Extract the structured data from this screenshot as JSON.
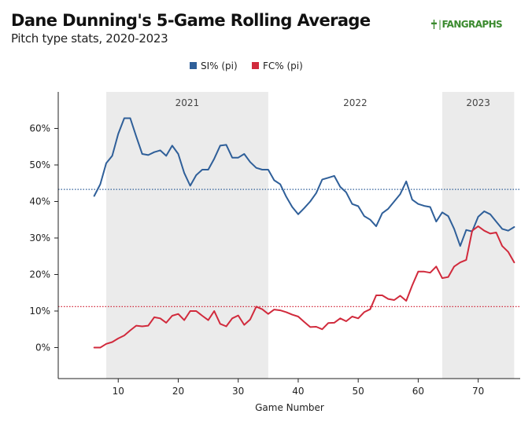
{
  "header": {
    "title": "Dane Dunning's 5-Game Rolling Average",
    "subtitle": "Pitch type stats, 2020-2023",
    "logo_text": "FANGRAPHS"
  },
  "colors": {
    "si": "#2f5f99",
    "fc": "#d12a3c",
    "band": "#ebebeb",
    "axis": "#222222"
  },
  "chart_data": {
    "type": "line",
    "title": "Dane Dunning's 5-Game Rolling Average",
    "subtitle": "Pitch type stats, 2020-2023",
    "xlabel": "Game Number",
    "ylabel": "",
    "xlim": [
      0,
      77
    ],
    "ylim": [
      -0.085,
      0.7
    ],
    "x_ticks": [
      10,
      20,
      30,
      40,
      50,
      60,
      70
    ],
    "y_ticks": [
      0,
      0.1,
      0.2,
      0.3,
      0.4,
      0.5,
      0.6
    ],
    "y_tick_labels": [
      "0%",
      "10%",
      "20%",
      "30%",
      "40%",
      "50%",
      "60%"
    ],
    "legend_position": "top-center",
    "bands": [
      {
        "label": "2021",
        "x0": 8,
        "x1": 35,
        "shaded": true
      },
      {
        "label": "2022",
        "x0": 35,
        "x1": 64,
        "shaded": false
      },
      {
        "label": "2023",
        "x0": 64,
        "x1": 76,
        "shaded": true
      }
    ],
    "series": [
      {
        "name": "SI% (pi)",
        "color": "#2f5f99",
        "mean": 0.433,
        "x": [
          6,
          7,
          8,
          9,
          10,
          11,
          12,
          13,
          14,
          15,
          16,
          17,
          18,
          19,
          20,
          21,
          22,
          23,
          24,
          25,
          26,
          27,
          28,
          29,
          30,
          31,
          32,
          33,
          34,
          35,
          36,
          37,
          38,
          39,
          40,
          41,
          42,
          43,
          44,
          45,
          46,
          47,
          48,
          49,
          50,
          51,
          52,
          53,
          54,
          55,
          56,
          57,
          58,
          59,
          60,
          61,
          62,
          63,
          64,
          65,
          66,
          67,
          68,
          69,
          70,
          71,
          72,
          73,
          74,
          75,
          76
        ],
        "y": [
          0.415,
          0.447,
          0.505,
          0.525,
          0.585,
          0.628,
          0.628,
          0.578,
          0.53,
          0.527,
          0.535,
          0.54,
          0.525,
          0.553,
          0.53,
          0.478,
          0.443,
          0.472,
          0.487,
          0.487,
          0.517,
          0.553,
          0.555,
          0.52,
          0.52,
          0.53,
          0.508,
          0.492,
          0.487,
          0.487,
          0.458,
          0.447,
          0.413,
          0.385,
          0.365,
          0.382,
          0.4,
          0.423,
          0.46,
          0.465,
          0.47,
          0.44,
          0.425,
          0.393,
          0.387,
          0.36,
          0.35,
          0.332,
          0.368,
          0.38,
          0.4,
          0.42,
          0.455,
          0.405,
          0.393,
          0.388,
          0.385,
          0.345,
          0.37,
          0.36,
          0.325,
          0.278,
          0.322,
          0.318,
          0.358,
          0.373,
          0.365,
          0.345,
          0.325,
          0.32,
          0.33
        ]
      },
      {
        "name": "FC% (pi)",
        "color": "#d12a3c",
        "mean": 0.112,
        "x": [
          6,
          7,
          8,
          9,
          10,
          11,
          12,
          13,
          14,
          15,
          16,
          17,
          18,
          19,
          20,
          21,
          22,
          23,
          24,
          25,
          26,
          27,
          28,
          29,
          30,
          31,
          32,
          33,
          34,
          35,
          36,
          37,
          38,
          39,
          40,
          41,
          42,
          43,
          44,
          45,
          46,
          47,
          48,
          49,
          50,
          51,
          52,
          53,
          54,
          55,
          56,
          57,
          58,
          59,
          60,
          61,
          62,
          63,
          64,
          65,
          66,
          67,
          68,
          69,
          70,
          71,
          72,
          73,
          74,
          75,
          76
        ],
        "y": [
          0.0,
          0.0,
          0.01,
          0.015,
          0.025,
          0.033,
          0.047,
          0.06,
          0.058,
          0.06,
          0.083,
          0.08,
          0.068,
          0.087,
          0.092,
          0.075,
          0.1,
          0.1,
          0.087,
          0.075,
          0.1,
          0.065,
          0.058,
          0.08,
          0.088,
          0.062,
          0.077,
          0.112,
          0.105,
          0.092,
          0.104,
          0.102,
          0.097,
          0.09,
          0.085,
          0.07,
          0.056,
          0.057,
          0.05,
          0.067,
          0.068,
          0.08,
          0.072,
          0.085,
          0.08,
          0.097,
          0.105,
          0.143,
          0.143,
          0.133,
          0.13,
          0.142,
          0.128,
          0.17,
          0.208,
          0.208,
          0.205,
          0.222,
          0.19,
          0.193,
          0.222,
          0.233,
          0.24,
          0.32,
          0.332,
          0.32,
          0.312,
          0.315,
          0.278,
          0.262,
          0.233
        ]
      }
    ]
  }
}
